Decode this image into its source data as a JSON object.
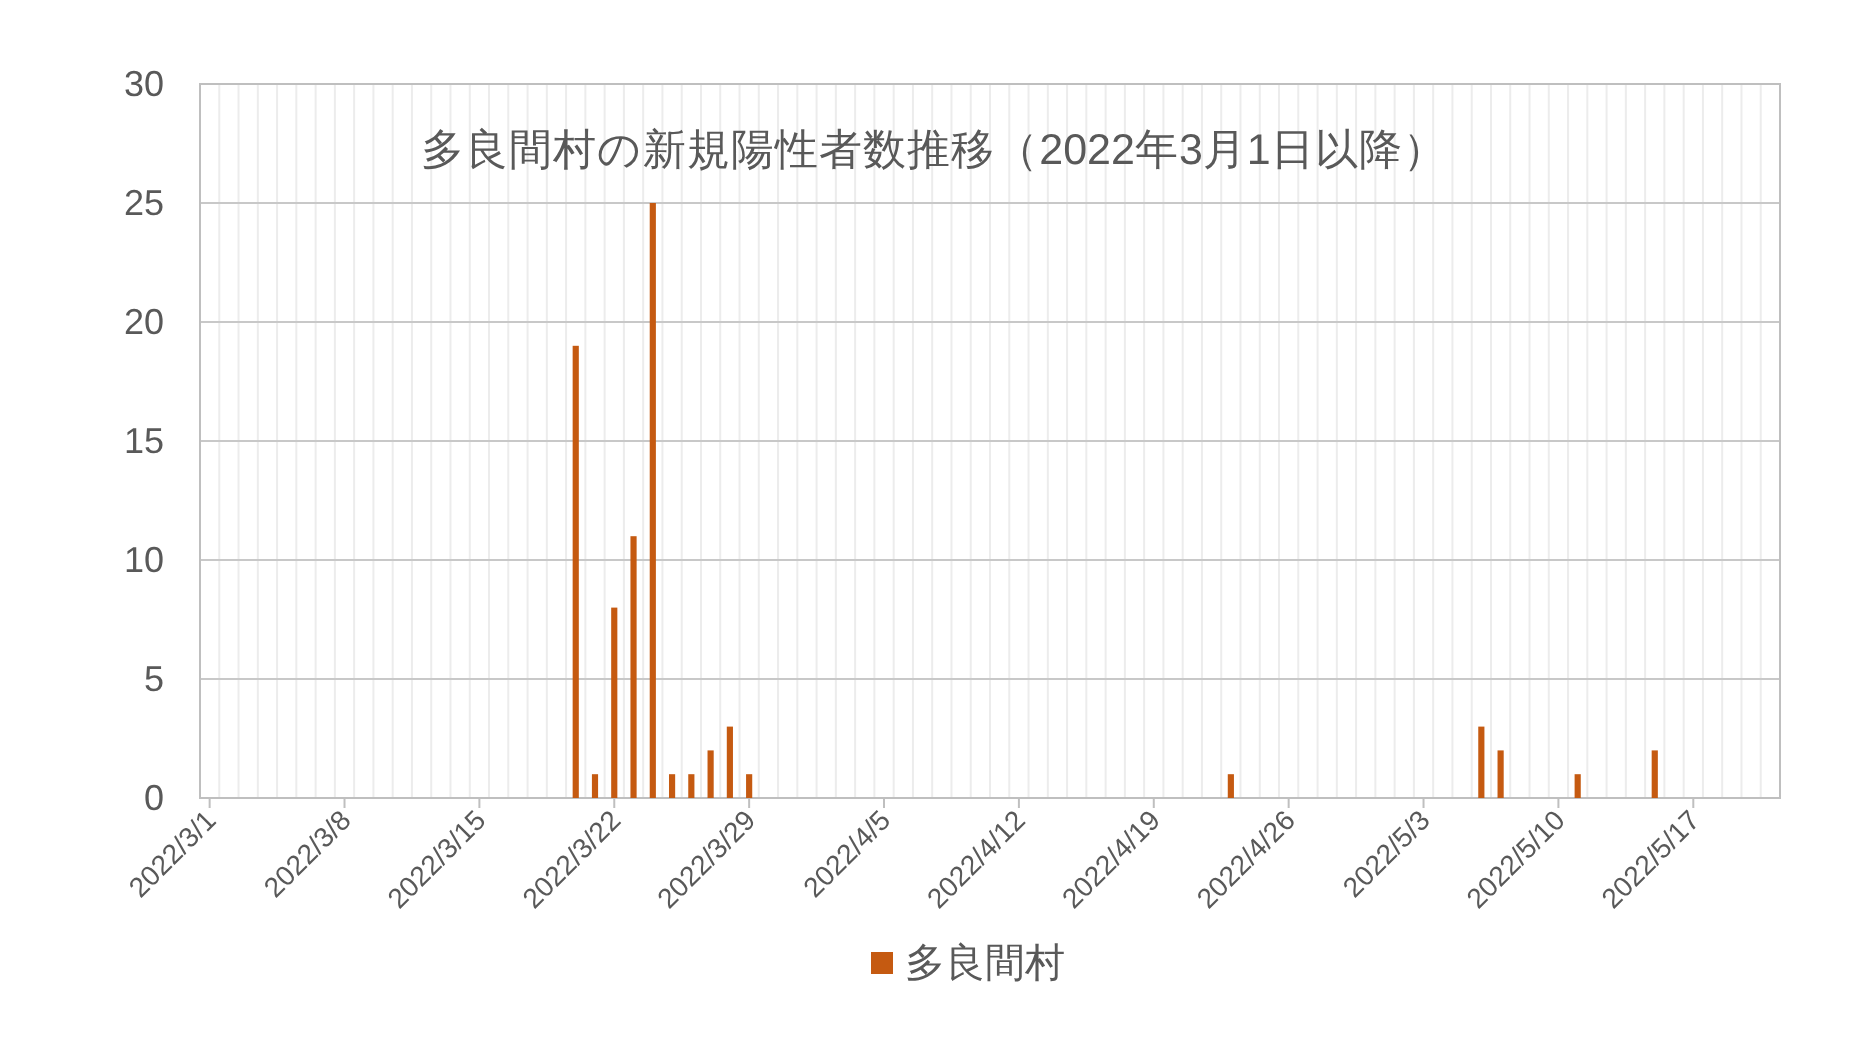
{
  "chart_data": {
    "type": "bar",
    "title": "多良間村の新規陽性者数推移（2022年3月1日以降）",
    "x": [
      "2022-03-20",
      "2022-03-21",
      "2022-03-22",
      "2022-03-23",
      "2022-03-24",
      "2022-03-25",
      "2022-03-26",
      "2022-03-27",
      "2022-03-28",
      "2022-03-29",
      "2022-04-23",
      "2022-05-06",
      "2022-05-07",
      "2022-05-11",
      "2022-05-15"
    ],
    "series": [
      {
        "name": "多良間村",
        "color": "#c55a11",
        "values": [
          19,
          1,
          8,
          11,
          25,
          1,
          1,
          2,
          3,
          1,
          1,
          3,
          2,
          1,
          2
        ]
      }
    ],
    "xlim": [
      "2022-02-28T12:00",
      "2022-05-21T12:00"
    ],
    "xticks": [
      {
        "value": "2022-03-01",
        "label": "2022/3/1"
      },
      {
        "value": "2022-03-08",
        "label": "2022/3/8"
      },
      {
        "value": "2022-03-15",
        "label": "2022/3/15"
      },
      {
        "value": "2022-03-22",
        "label": "2022/3/22"
      },
      {
        "value": "2022-03-29",
        "label": "2022/3/29"
      },
      {
        "value": "2022-04-05",
        "label": "2022/4/5"
      },
      {
        "value": "2022-04-12",
        "label": "2022/4/12"
      },
      {
        "value": "2022-04-19",
        "label": "2022/4/19"
      },
      {
        "value": "2022-04-26",
        "label": "2022/4/26"
      },
      {
        "value": "2022-05-03",
        "label": "2022/5/3"
      },
      {
        "value": "2022-05-10",
        "label": "2022/5/10"
      },
      {
        "value": "2022-05-17",
        "label": "2022/5/17"
      }
    ],
    "ylim": [
      0,
      30
    ],
    "yticks": [
      0,
      5,
      10,
      15,
      20,
      25,
      30
    ],
    "grid": true,
    "legend": "bottom"
  }
}
